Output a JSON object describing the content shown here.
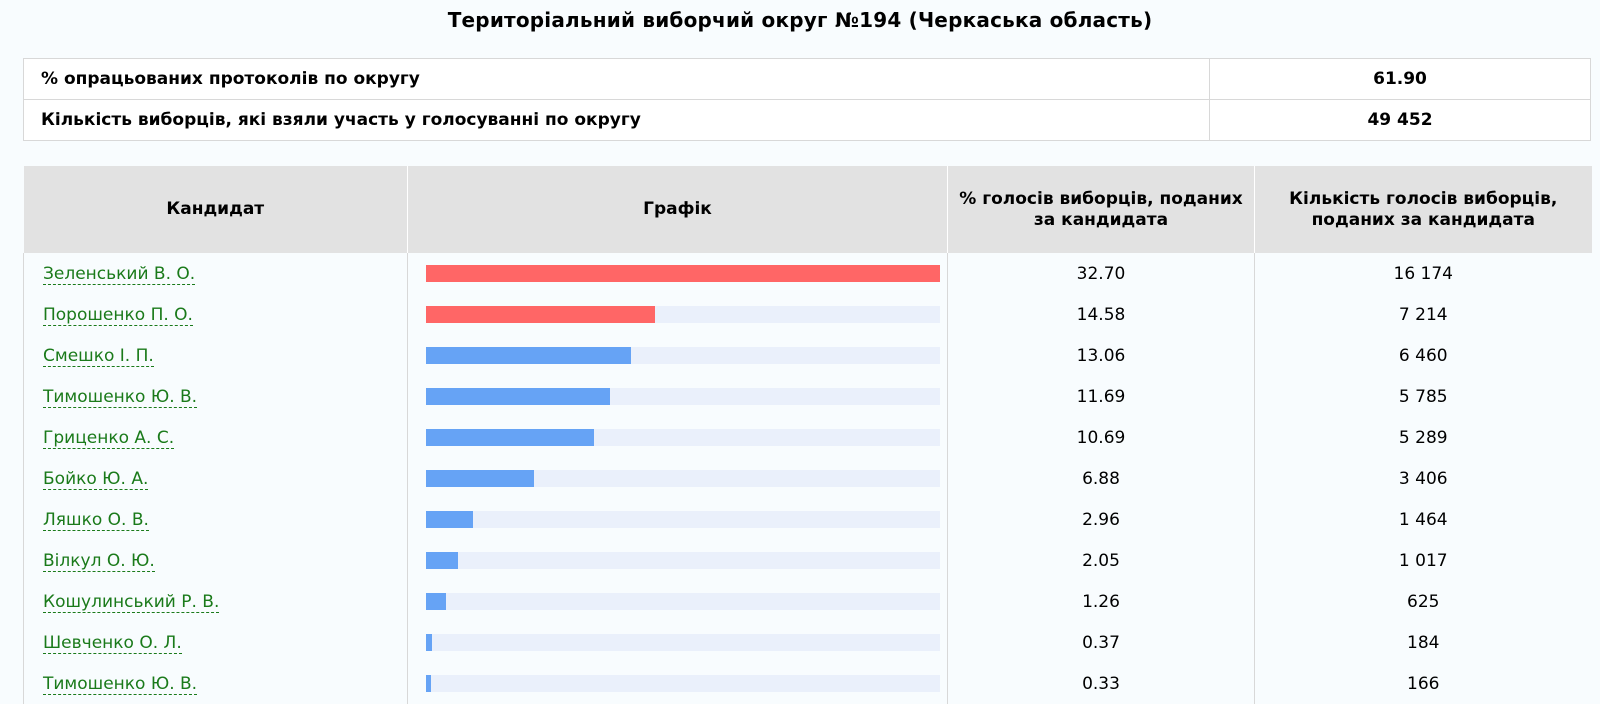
{
  "page": {
    "title": "Територіальний виборчий округ №194 (Черкаська область)"
  },
  "summary": [
    {
      "label": "% опрацьованих протоколів по округу",
      "value": "61.90"
    },
    {
      "label": "Кількість виборців, які взяли участь у голосуванні по округу",
      "value": "49 452"
    }
  ],
  "table": {
    "headers": {
      "candidate": "Кандидат",
      "chart": "Графік",
      "percent": "% голосів виборців, поданих за кандидата",
      "votes": "Кількість голосів виборців, поданих за кандидата"
    },
    "colors": {
      "top": "#ff6666",
      "other": "#66a3f5",
      "track": "#eaf0fb",
      "link": "#1a7a1a"
    },
    "max_percent": 32.7,
    "rows": [
      {
        "name": "Зеленський В. О.",
        "percent": "32.70",
        "votes": "16 174",
        "highlight": true
      },
      {
        "name": "Порошенко П. О.",
        "percent": "14.58",
        "votes": "7 214",
        "highlight": true
      },
      {
        "name": "Смешко І. П.",
        "percent": "13.06",
        "votes": "6 460",
        "highlight": false
      },
      {
        "name": "Тимошенко Ю. В.",
        "percent": "11.69",
        "votes": "5 785",
        "highlight": false
      },
      {
        "name": "Гриценко А. С.",
        "percent": "10.69",
        "votes": "5 289",
        "highlight": false
      },
      {
        "name": "Бойко Ю. А.",
        "percent": "6.88",
        "votes": "3 406",
        "highlight": false
      },
      {
        "name": "Ляшко О. В.",
        "percent": "2.96",
        "votes": "1 464",
        "highlight": false
      },
      {
        "name": "Вілкул О. Ю.",
        "percent": "2.05",
        "votes": "1 017",
        "highlight": false
      },
      {
        "name": "Кошулинський Р. В.",
        "percent": "1.26",
        "votes": "625",
        "highlight": false
      },
      {
        "name": "Шевченко О. Л.",
        "percent": "0.37",
        "votes": "184",
        "highlight": false
      },
      {
        "name": "Тимошенко Ю. В.",
        "percent": "0.33",
        "votes": "166",
        "highlight": false
      }
    ]
  }
}
